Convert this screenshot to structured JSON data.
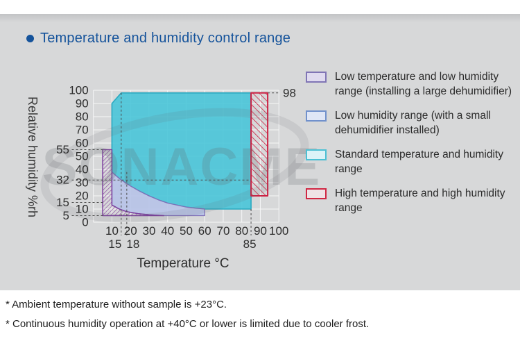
{
  "page": {
    "bullet_icon": "",
    "title": "Temperature and humidity control range"
  },
  "chart_data": {
    "type": "area",
    "xlabel": "Temperature °C",
    "ylabel": "Relative humidity %rh",
    "xlim": [
      0,
      100
    ],
    "ylim": [
      0,
      100
    ],
    "grid_step": 10,
    "grid_color": "#ffffff",
    "x_ticks": [
      10,
      20,
      30,
      40,
      50,
      60,
      70,
      80,
      90,
      100
    ],
    "y_ticks": [
      0,
      10,
      20,
      30,
      40,
      50,
      60,
      70,
      80,
      90,
      100
    ],
    "tick_color": "#2d2d2d",
    "guide_color": "#4c4c4c",
    "hatches": [
      {
        "id": "hatchPurple",
        "color": "#9050a5",
        "gap": 4.2,
        "width": 1.4,
        "angle": 45
      },
      {
        "id": "hatchRed",
        "color": "#cd2143",
        "gap": 6.5,
        "width": 1.6,
        "angle": -45
      }
    ],
    "regions": [
      {
        "name": "standard-temperature-and-humidity-range",
        "points": [
          [
            10,
            38
          ],
          [
            10,
            90
          ],
          [
            15,
            98
          ],
          [
            85,
            98
          ],
          [
            85,
            10
          ],
          [
            60,
            10
          ],
          [
            55,
            10.7
          ],
          [
            50,
            11.5
          ],
          [
            45,
            13
          ],
          [
            40,
            14.5
          ],
          [
            35,
            17
          ],
          [
            30,
            20
          ],
          [
            25,
            23.5
          ],
          [
            20,
            27.5
          ],
          [
            15,
            32
          ],
          [
            12,
            35.5
          ]
        ],
        "fill": "#49c5d8",
        "fill_opacity": 0.9,
        "stroke": "#2aa9c0",
        "stroke_width": 1.6
      },
      {
        "name": "low-humidity-range-small-dehumidifier",
        "points": [
          [
            10,
            38
          ],
          [
            12,
            35.5
          ],
          [
            15,
            32
          ],
          [
            20,
            27.5
          ],
          [
            25,
            23.5
          ],
          [
            30,
            20
          ],
          [
            35,
            17
          ],
          [
            40,
            14.5
          ],
          [
            45,
            13
          ],
          [
            50,
            11.5
          ],
          [
            55,
            10.7
          ],
          [
            60,
            10
          ],
          [
            60,
            5
          ],
          [
            38,
            5
          ],
          [
            30,
            5.7
          ],
          [
            24,
            6.5
          ],
          [
            18,
            8
          ],
          [
            14,
            10
          ],
          [
            12,
            11.5
          ],
          [
            10,
            13
          ]
        ],
        "fill": "#b7c3e7",
        "fill_opacity": 0.92,
        "stroke": "#8070b8",
        "stroke_width": 1.3
      },
      {
        "name": "low-temperature-and-low-humidity-range",
        "points": [
          [
            5,
            55
          ],
          [
            10,
            55
          ],
          [
            10,
            13
          ],
          [
            12,
            11.5
          ],
          [
            14,
            10
          ],
          [
            18,
            8
          ],
          [
            24,
            6.5
          ],
          [
            30,
            5.7
          ],
          [
            38,
            5
          ],
          [
            5,
            5
          ]
        ],
        "hatch": "hatchPurple",
        "stroke": "#7b3f9d",
        "stroke_width": 1.5
      },
      {
        "name": "high-temperature-and-high-humidity-range",
        "points": [
          [
            85,
            20
          ],
          [
            85,
            98
          ],
          [
            94,
            98
          ],
          [
            94,
            20
          ]
        ],
        "hatch": "hatchRed",
        "stroke": "#cc2143",
        "stroke_width": 2
      }
    ],
    "h_guides": [
      {
        "label": "55",
        "y": 55,
        "x_to": 5
      },
      {
        "label": "32",
        "y": 32,
        "x_to": 85
      },
      {
        "label": "15",
        "y": 15,
        "x_to": 5
      },
      {
        "label": "5",
        "y": 5,
        "x_to": 5
      }
    ],
    "right_guide": {
      "label": "98",
      "y": 98,
      "x_from": 94
    },
    "v_guides": [
      {
        "label": "15",
        "x": 15,
        "y_top": 98,
        "label_dx": -9
      },
      {
        "label": "18",
        "x": 18,
        "y_top": 38,
        "label_dx": 9
      },
      {
        "label": "85",
        "x": 85,
        "y_top": 10,
        "label_dx": -2
      }
    ]
  },
  "watermark": {
    "text": "SONACME",
    "color": "#626669"
  },
  "legend": {
    "items": [
      {
        "label": "Low temperature and low humidity range (installing a large dehumidifier)",
        "swatch_border": "#8075b5",
        "swatch_fill": "#dfdaef"
      },
      {
        "label": "Low humidity range (with a small dehumidifier installed)",
        "swatch_border": "#7191cc",
        "swatch_fill": "#dfe6f6"
      },
      {
        "label": "Standard temperature and humidity range",
        "swatch_border": "#4cc0d4",
        "swatch_fill": "#dcf3f8"
      },
      {
        "label": "High temperature and high humidity range",
        "swatch_border": "#d02844",
        "swatch_fill": "#efe3e6"
      }
    ]
  },
  "footnotes": [
    "* Ambient temperature without sample is +23°C.",
    "* Continuous humidity operation at +40°C or lower is limited due to cooler frost."
  ]
}
